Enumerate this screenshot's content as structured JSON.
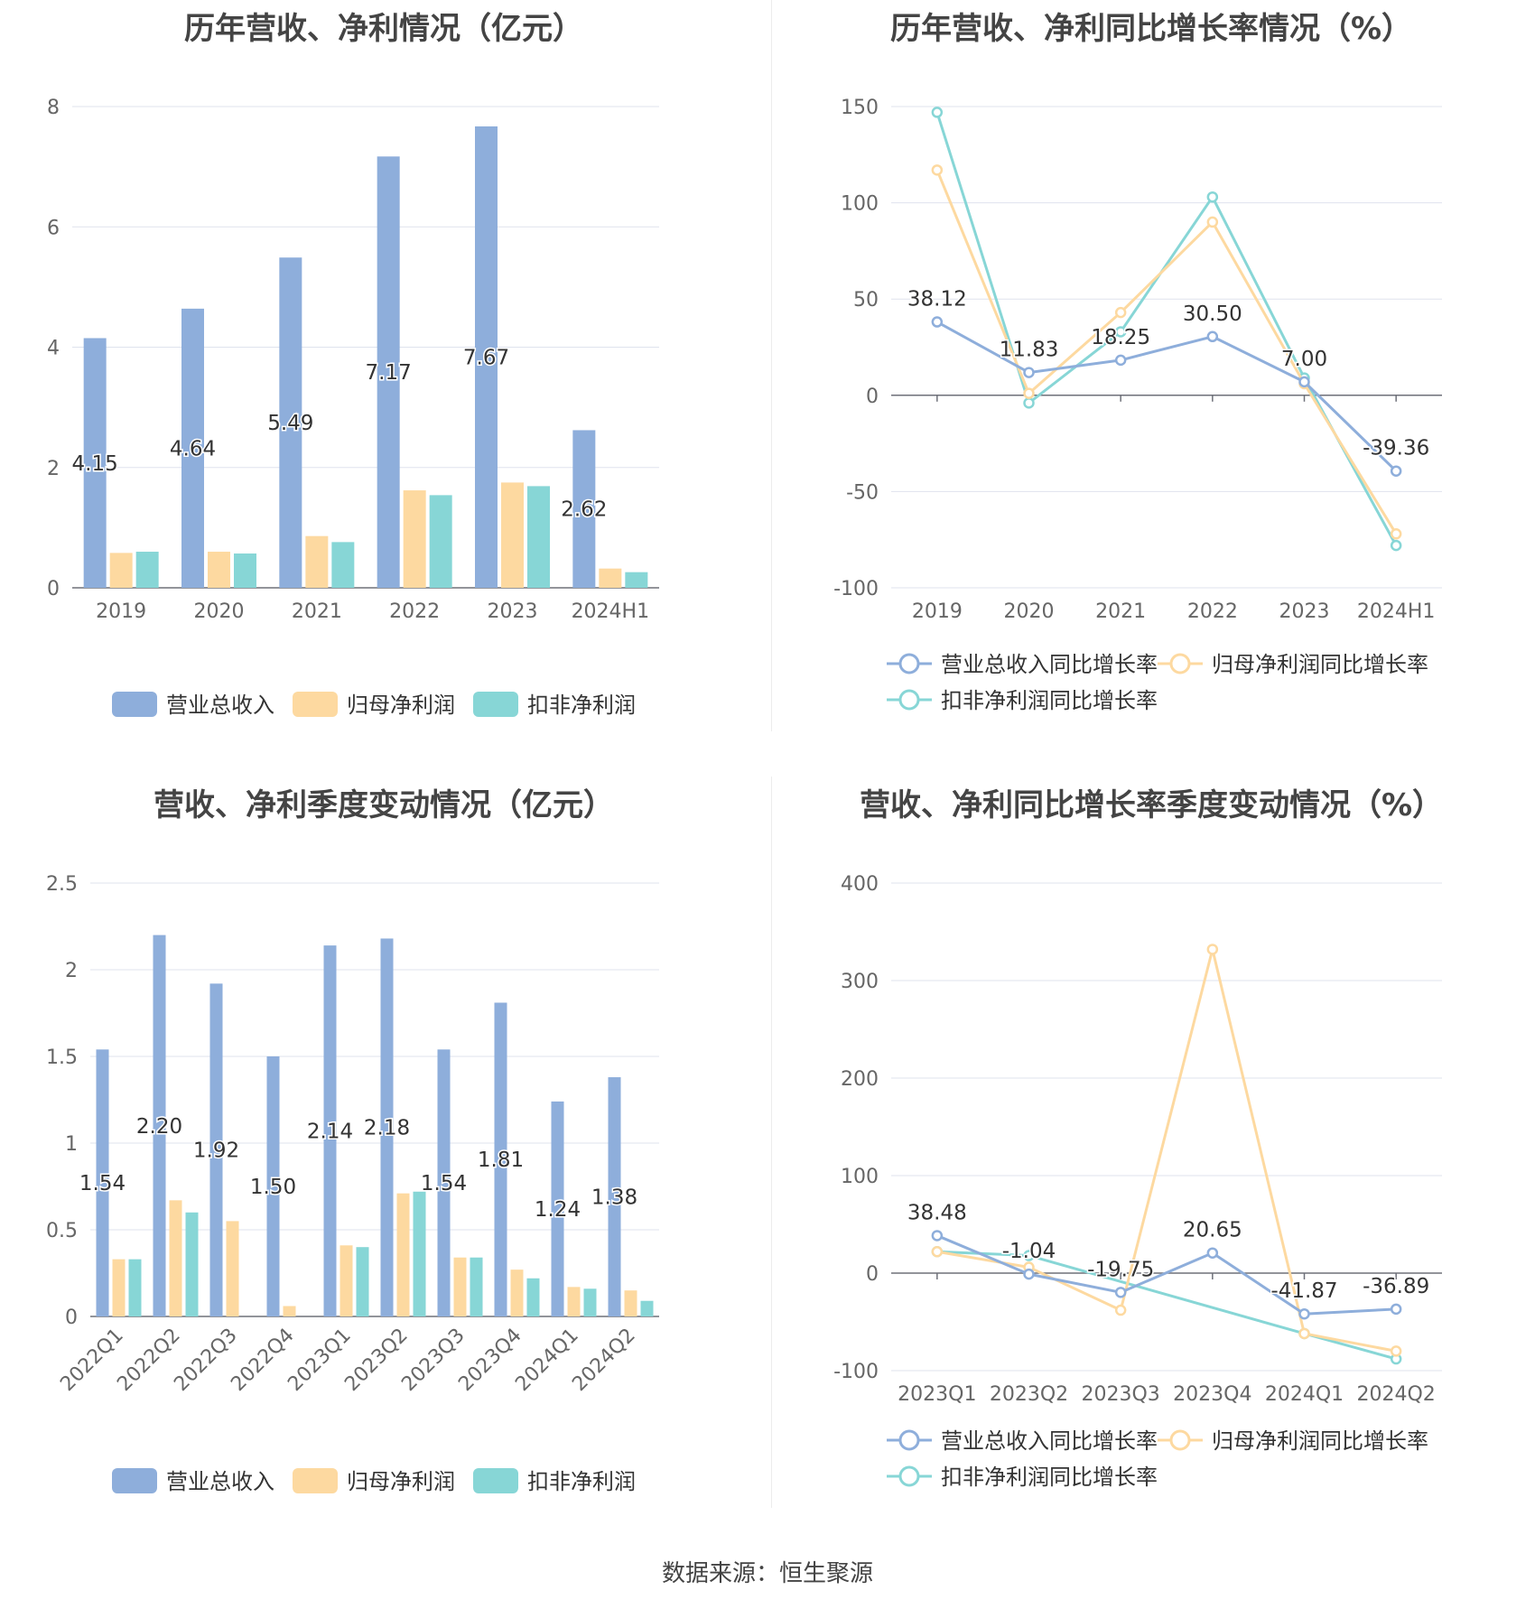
{
  "source": "数据来源：恒生聚源",
  "colors": {
    "revenue": "#8eaedb",
    "net_profit": "#fdd9a0",
    "deducted_profit": "#87d6d6"
  },
  "chart_data": [
    {
      "type": "bar",
      "title": "历年营收、净利情况（亿元）",
      "categories": [
        "2019",
        "2020",
        "2021",
        "2022",
        "2023",
        "2024H1"
      ],
      "ylim": [
        0,
        8
      ],
      "yticks": [
        0,
        2,
        4,
        6,
        8
      ],
      "grid": true,
      "legend_position": "bottom",
      "series": [
        {
          "name": "营业总收入",
          "values": [
            4.15,
            4.64,
            5.49,
            7.17,
            7.67,
            2.62
          ],
          "labels": [
            "4.15",
            "4.64",
            "5.49",
            "7.17",
            "7.67",
            "2.62"
          ]
        },
        {
          "name": "归母净利润",
          "values": [
            0.58,
            0.6,
            0.86,
            1.62,
            1.75,
            0.32
          ]
        },
        {
          "name": "扣非净利润",
          "values": [
            0.6,
            0.57,
            0.76,
            1.54,
            1.69,
            0.26
          ]
        }
      ]
    },
    {
      "type": "line",
      "title": "历年营收、净利同比增长率情况（%）",
      "categories": [
        "2019",
        "2020",
        "2021",
        "2022",
        "2023",
        "2024H1"
      ],
      "ylim": [
        -100,
        150
      ],
      "yticks": [
        -100,
        -50,
        0,
        50,
        100,
        150
      ],
      "grid": true,
      "legend_position": "bottom",
      "series": [
        {
          "name": "营业总收入同比增长率",
          "values": [
            38.12,
            11.83,
            18.25,
            30.5,
            7.0,
            -39.36
          ],
          "labels": [
            "38.12",
            "11.83",
            "18.25",
            "30.50",
            "7.00",
            "-39.36"
          ]
        },
        {
          "name": "归母净利润同比增长率",
          "values": [
            117,
            1,
            43,
            90,
            6,
            -72
          ]
        },
        {
          "name": "扣非净利润同比增长率",
          "values": [
            147,
            -4,
            33,
            103,
            9,
            -78
          ]
        }
      ]
    },
    {
      "type": "bar",
      "title": "营收、净利季度变动情况（亿元）",
      "categories": [
        "2022Q1",
        "2022Q2",
        "2022Q3",
        "2022Q4",
        "2023Q1",
        "2023Q2",
        "2023Q3",
        "2023Q4",
        "2024Q1",
        "2024Q2"
      ],
      "ylim": [
        0,
        2.5
      ],
      "yticks": [
        0,
        0.5,
        1,
        1.5,
        2,
        2.5
      ],
      "grid": true,
      "legend_position": "bottom",
      "series": [
        {
          "name": "营业总收入",
          "values": [
            1.54,
            2.2,
            1.92,
            1.5,
            2.14,
            2.18,
            1.54,
            1.81,
            1.24,
            1.38
          ],
          "labels": [
            "1.54",
            "2.20",
            "1.92",
            "1.50",
            "2.14",
            "2.18",
            "1.54",
            "1.81",
            "1.24",
            "1.38"
          ]
        },
        {
          "name": "归母净利润",
          "values": [
            0.33,
            0.67,
            0.55,
            0.06,
            0.41,
            0.71,
            0.34,
            0.27,
            0.17,
            0.15
          ]
        },
        {
          "name": "扣非净利润",
          "values": [
            0.33,
            0.6,
            null,
            null,
            0.4,
            0.72,
            0.34,
            0.22,
            0.16,
            0.09
          ]
        }
      ]
    },
    {
      "type": "line",
      "title": "营收、净利同比增长率季度变动情况（%）",
      "categories": [
        "2023Q1",
        "2023Q2",
        "2023Q3",
        "2023Q4",
        "2024Q1",
        "2024Q2"
      ],
      "ylim": [
        -100,
        400
      ],
      "yticks": [
        -100,
        0,
        100,
        200,
        300,
        400
      ],
      "grid": true,
      "legend_position": "bottom",
      "series": [
        {
          "name": "营业总收入同比增长率",
          "values": [
            38.48,
            -1.04,
            -19.75,
            20.65,
            -41.87,
            -36.89
          ],
          "labels": [
            "38.48",
            "-1.04",
            "-19.75",
            "20.65",
            "-41.87",
            "-36.89"
          ]
        },
        {
          "name": "归母净利润同比增长率",
          "values": [
            22,
            6,
            -38,
            332,
            -62,
            -80
          ]
        },
        {
          "name": "扣非净利润同比增长率",
          "values": [
            22,
            18,
            null,
            null,
            -62,
            -88
          ]
        }
      ]
    }
  ]
}
